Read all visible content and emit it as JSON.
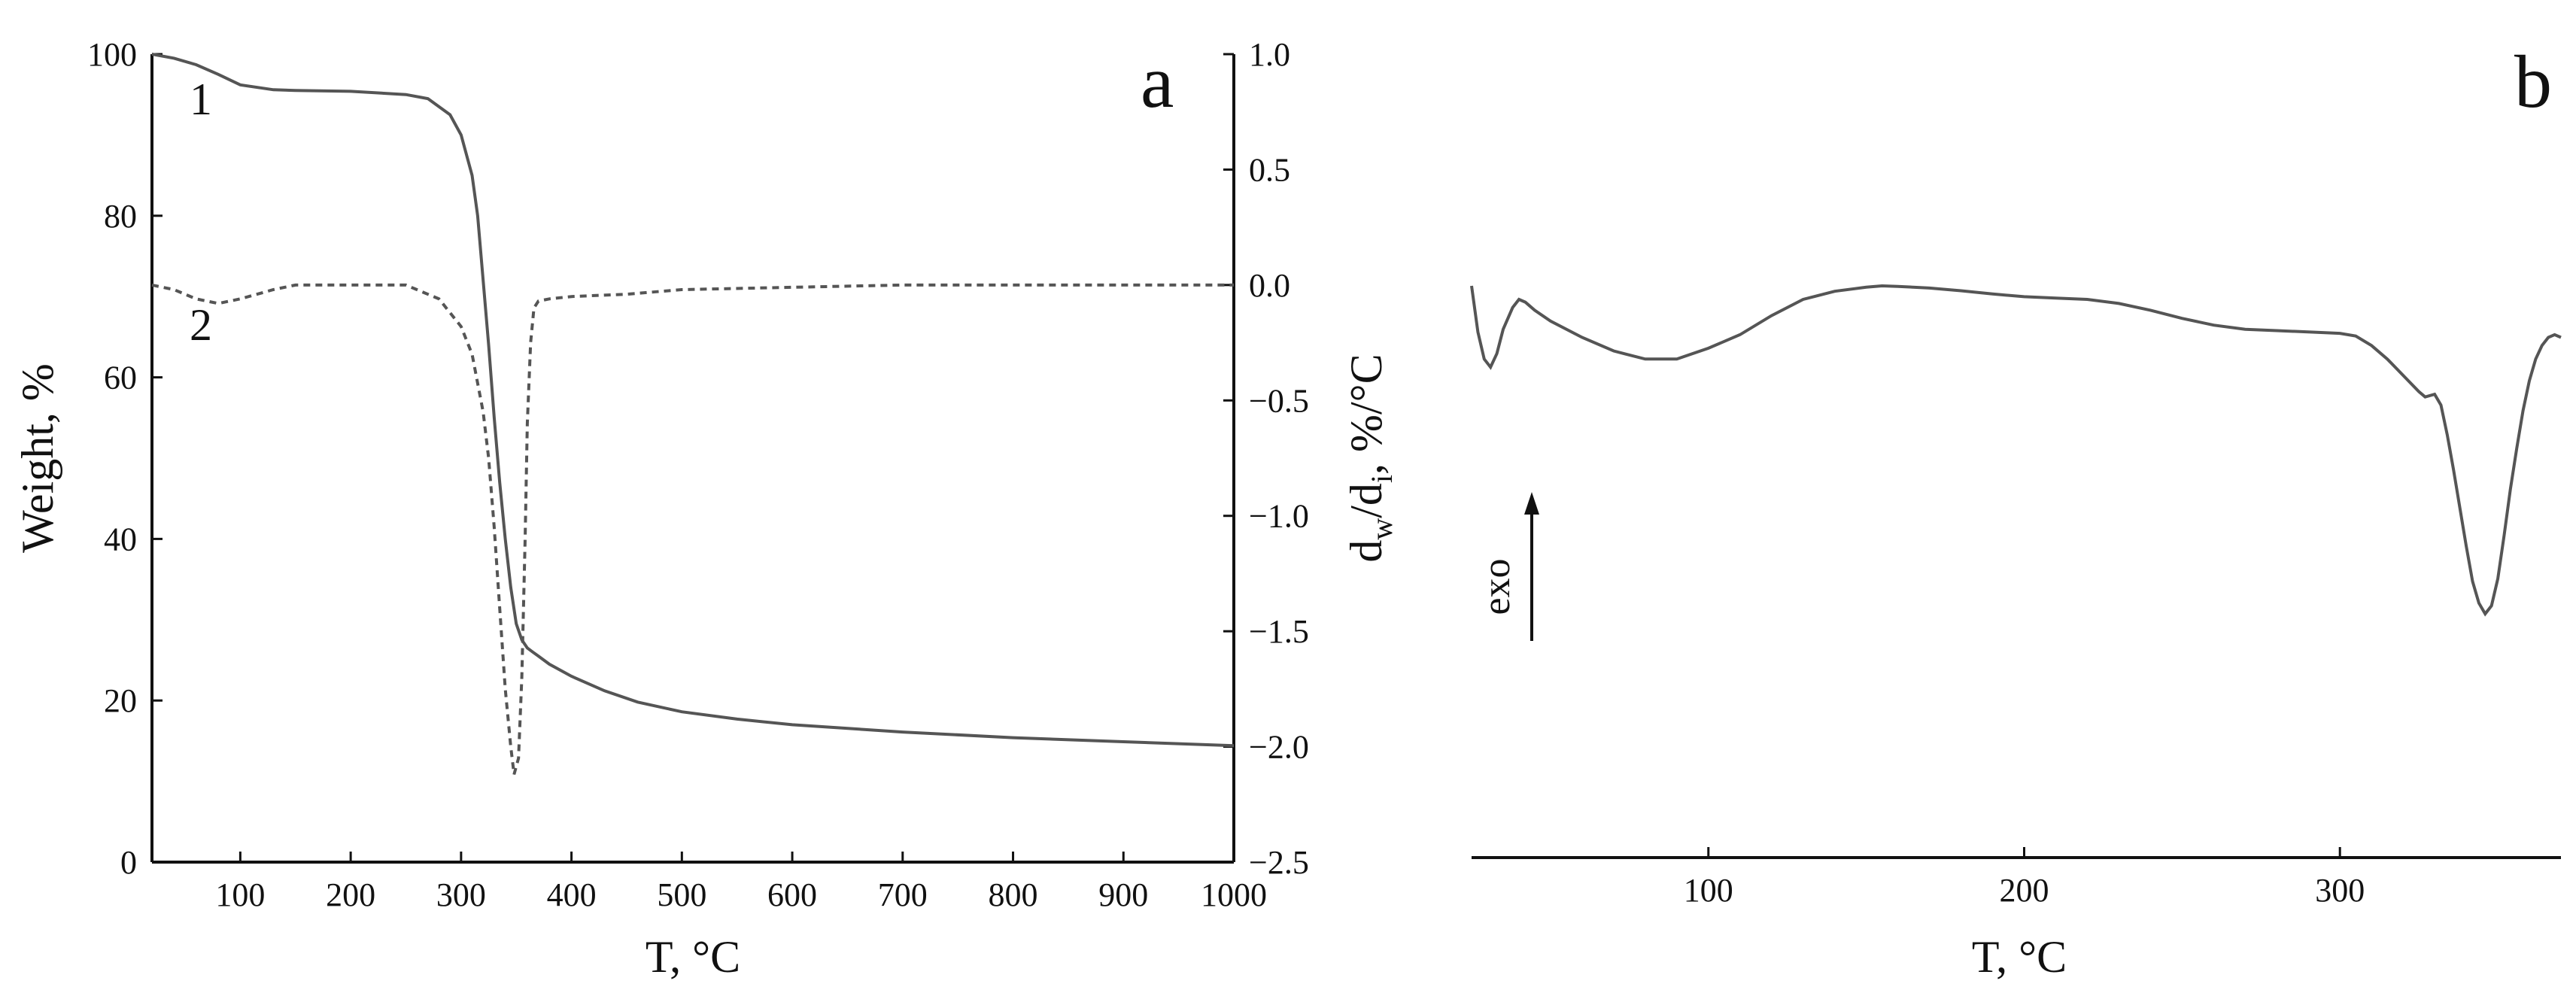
{
  "colors": {
    "axis": "#111111",
    "curve": "#555555"
  },
  "panel_a": {
    "letter": "a",
    "xlabel": "T, °C",
    "ylabel_left": "Weight, %",
    "ylabel_right_main": "d",
    "ylabel_right_sub1": "w",
    "ylabel_right_mid": "/d",
    "ylabel_right_sub2": "i",
    "ylabel_right_tail": ", %/°C",
    "curve_label_1": "1",
    "curve_label_2": "2",
    "xticks": [
      "100",
      "200",
      "300",
      "400",
      "500",
      "600",
      "700",
      "800",
      "900",
      "1000"
    ],
    "yticks_left": [
      "0",
      "20",
      "40",
      "60",
      "80",
      "100"
    ],
    "yticks_right": [
      "1.0",
      "0.5",
      "0.0",
      "−0.5",
      "−1.0",
      "−1.5",
      "−2.0",
      "−2.5"
    ]
  },
  "panel_b": {
    "letter": "b",
    "xlabel": "T, °C",
    "exo_label": "exo",
    "xticks": [
      "100",
      "200",
      "300"
    ]
  },
  "chart_data": [
    {
      "type": "line",
      "panel": "a",
      "xlabel": "T, °C",
      "ylabel": "Weight, %",
      "y2label": "dw/di, %/°C",
      "xlim": [
        20,
        1000
      ],
      "ylim": [
        0,
        100
      ],
      "y2lim": [
        -2.5,
        1.0
      ],
      "xticks": [
        100,
        200,
        300,
        400,
        500,
        600,
        700,
        800,
        900,
        1000
      ],
      "yticks": [
        0,
        20,
        40,
        60,
        80,
        100
      ],
      "y2ticks": [
        1.0,
        0.5,
        0.0,
        -0.5,
        -1.0,
        -1.5,
        -2.0,
        -2.5
      ],
      "grid": false,
      "series": [
        {
          "name": "1",
          "axis": "left",
          "style": "solid",
          "x": [
            20,
            40,
            60,
            80,
            100,
            130,
            150,
            200,
            250,
            270,
            290,
            300,
            310,
            315,
            320,
            325,
            330,
            335,
            340,
            345,
            350,
            355,
            360,
            365,
            370,
            380,
            400,
            430,
            460,
            500,
            550,
            600,
            700,
            800,
            900,
            1000
          ],
          "y": [
            100,
            99.5,
            98.7,
            97.5,
            96.2,
            95.6,
            95.5,
            95.4,
            95.0,
            94.5,
            92.5,
            90.0,
            85.0,
            80.0,
            72.0,
            64.0,
            55.0,
            47.0,
            40.0,
            34.0,
            29.5,
            27.5,
            26.5,
            26.0,
            25.5,
            24.5,
            23.0,
            21.2,
            19.8,
            18.6,
            17.7,
            17.0,
            16.1,
            15.4,
            14.9,
            14.4
          ]
        },
        {
          "name": "2",
          "axis": "right",
          "style": "dashed",
          "x": [
            20,
            40,
            60,
            80,
            100,
            130,
            150,
            200,
            250,
            280,
            300,
            310,
            320,
            325,
            330,
            335,
            340,
            345,
            348,
            352,
            355,
            358,
            360,
            363,
            366,
            370,
            380,
            400,
            450,
            500,
            600,
            700,
            800,
            900,
            1000
          ],
          "y": [
            0.0,
            -0.02,
            -0.06,
            -0.08,
            -0.06,
            -0.02,
            0.0,
            0.0,
            0.0,
            -0.06,
            -0.18,
            -0.3,
            -0.55,
            -0.75,
            -1.05,
            -1.4,
            -1.75,
            -2.0,
            -2.12,
            -2.05,
            -1.7,
            -1.1,
            -0.6,
            -0.25,
            -0.1,
            -0.07,
            -0.06,
            -0.05,
            -0.04,
            -0.02,
            -0.01,
            0.0,
            0.0,
            0.0,
            0.0
          ]
        }
      ]
    },
    {
      "type": "line",
      "panel": "b",
      "xlabel": "T, °C",
      "xlim": [
        25,
        370
      ],
      "xticks": [
        100,
        200,
        300
      ],
      "grid": false,
      "y_axis_shown": false,
      "series": [
        {
          "x": [
            25,
            27,
            29,
            31,
            33,
            35,
            38,
            40,
            42,
            45,
            50,
            60,
            70,
            80,
            90,
            100,
            110,
            120,
            130,
            140,
            150,
            155,
            160,
            170,
            180,
            190,
            200,
            210,
            220,
            230,
            240,
            250,
            260,
            270,
            280,
            290,
            300,
            305,
            310,
            315,
            320,
            325,
            327,
            330,
            332,
            334,
            336,
            338,
            340,
            342,
            344,
            346,
            348,
            350,
            352,
            354,
            356,
            358,
            360,
            362,
            364,
            366,
            368,
            370
          ],
          "y": [
            30,
            13,
            3,
            0,
            5,
            14,
            22,
            25,
            24,
            21,
            17,
            11,
            6,
            3,
            3,
            7,
            12,
            19,
            25,
            28,
            29.5,
            30,
            29.8,
            29.2,
            28.2,
            27,
            26,
            25.5,
            25,
            23.5,
            21,
            18,
            15.5,
            14,
            13.5,
            13,
            12.5,
            11.5,
            8,
            3,
            -3,
            -9,
            -11,
            -10,
            -14,
            -25,
            -38,
            -52,
            -66,
            -79,
            -87,
            -91,
            -88,
            -78,
            -62,
            -45,
            -30,
            -16,
            -5,
            3,
            8,
            11,
            12,
            11
          ]
        }
      ]
    }
  ]
}
